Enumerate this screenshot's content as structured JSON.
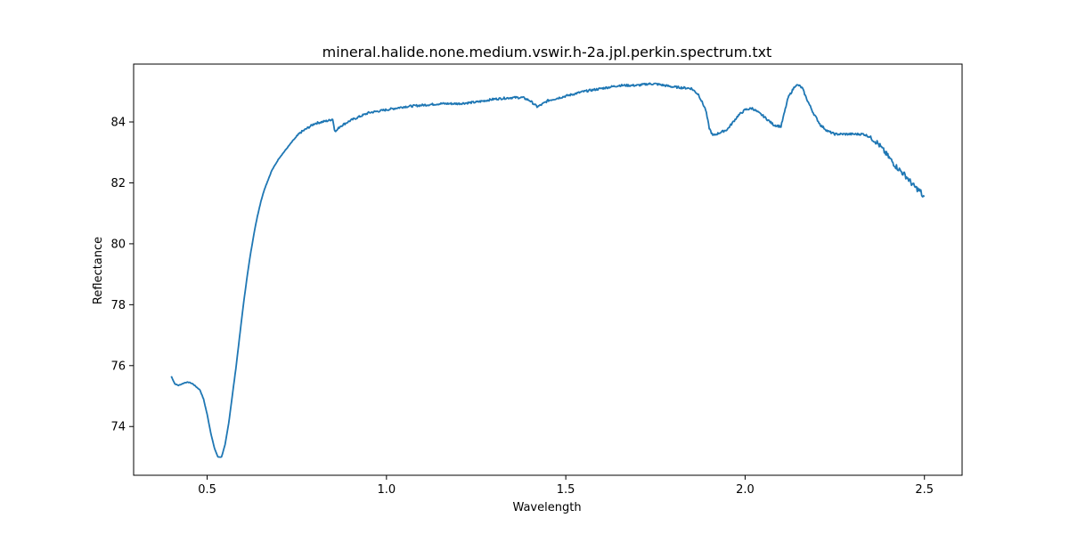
{
  "chart_data": {
    "type": "line",
    "title": "mineral.halide.none.medium.vswir.h-2a.jpl.perkin.spectrum.txt",
    "xlabel": "Wavelength",
    "ylabel": "Reflectance",
    "xlim": [
      0.295,
      2.605
    ],
    "ylim": [
      72.4,
      85.9
    ],
    "xticks": [
      0.5,
      1.0,
      1.5,
      2.0,
      2.5
    ],
    "xtick_labels": [
      "0.5",
      "1.0",
      "1.5",
      "2.0",
      "2.5"
    ],
    "yticks": [
      74,
      76,
      78,
      80,
      82,
      84
    ],
    "ytick_labels": [
      "74",
      "76",
      "78",
      "80",
      "82",
      "84"
    ],
    "grid": false,
    "legend": false,
    "line_color": "#1f77b4",
    "series": [
      {
        "x": [
          0.4,
          0.41,
          0.42,
          0.43,
          0.44,
          0.45,
          0.46,
          0.47,
          0.48,
          0.49,
          0.5,
          0.51,
          0.52,
          0.53,
          0.54,
          0.55,
          0.56,
          0.57,
          0.58,
          0.59,
          0.6,
          0.61,
          0.62,
          0.63,
          0.64,
          0.65,
          0.66,
          0.67,
          0.68,
          0.69,
          0.7,
          0.72,
          0.74,
          0.76,
          0.78,
          0.8,
          0.82,
          0.84,
          0.85,
          0.855,
          0.86,
          0.87,
          0.9,
          0.95,
          1.0,
          1.05,
          1.1,
          1.15,
          1.2,
          1.25,
          1.3,
          1.35,
          1.38,
          1.4,
          1.41,
          1.42,
          1.43,
          1.45,
          1.5,
          1.55,
          1.6,
          1.65,
          1.7,
          1.73,
          1.75,
          1.8,
          1.85,
          1.87,
          1.89,
          1.9,
          1.91,
          1.92,
          1.93,
          1.95,
          1.98,
          2.0,
          2.02,
          2.05,
          2.08,
          2.1,
          2.12,
          2.14,
          2.15,
          2.16,
          2.17,
          2.19,
          2.21,
          2.23,
          2.25,
          2.3,
          2.33,
          2.35,
          2.37,
          2.4,
          2.42,
          2.45,
          2.47,
          2.49,
          2.495,
          2.5
        ],
        "y": [
          75.65,
          75.4,
          75.35,
          75.4,
          75.45,
          75.45,
          75.4,
          75.3,
          75.2,
          74.9,
          74.4,
          73.8,
          73.3,
          73.0,
          73.0,
          73.4,
          74.1,
          75.0,
          75.9,
          76.9,
          77.9,
          78.8,
          79.6,
          80.3,
          80.9,
          81.4,
          81.8,
          82.1,
          82.4,
          82.6,
          82.8,
          83.1,
          83.4,
          83.65,
          83.8,
          83.95,
          84.0,
          84.05,
          84.1,
          83.75,
          83.7,
          83.85,
          84.05,
          84.3,
          84.4,
          84.5,
          84.55,
          84.6,
          84.6,
          84.65,
          84.75,
          84.8,
          84.8,
          84.7,
          84.6,
          84.5,
          84.55,
          84.7,
          84.85,
          85.0,
          85.1,
          85.2,
          85.2,
          85.25,
          85.25,
          85.15,
          85.1,
          84.9,
          84.4,
          83.8,
          83.55,
          83.6,
          83.65,
          83.75,
          84.2,
          84.4,
          84.45,
          84.2,
          83.9,
          83.85,
          84.8,
          85.2,
          85.2,
          85.1,
          84.8,
          84.3,
          83.9,
          83.7,
          83.6,
          83.6,
          83.6,
          83.5,
          83.3,
          82.85,
          82.55,
          82.2,
          81.9,
          81.7,
          81.55,
          81.55
        ]
      }
    ]
  }
}
